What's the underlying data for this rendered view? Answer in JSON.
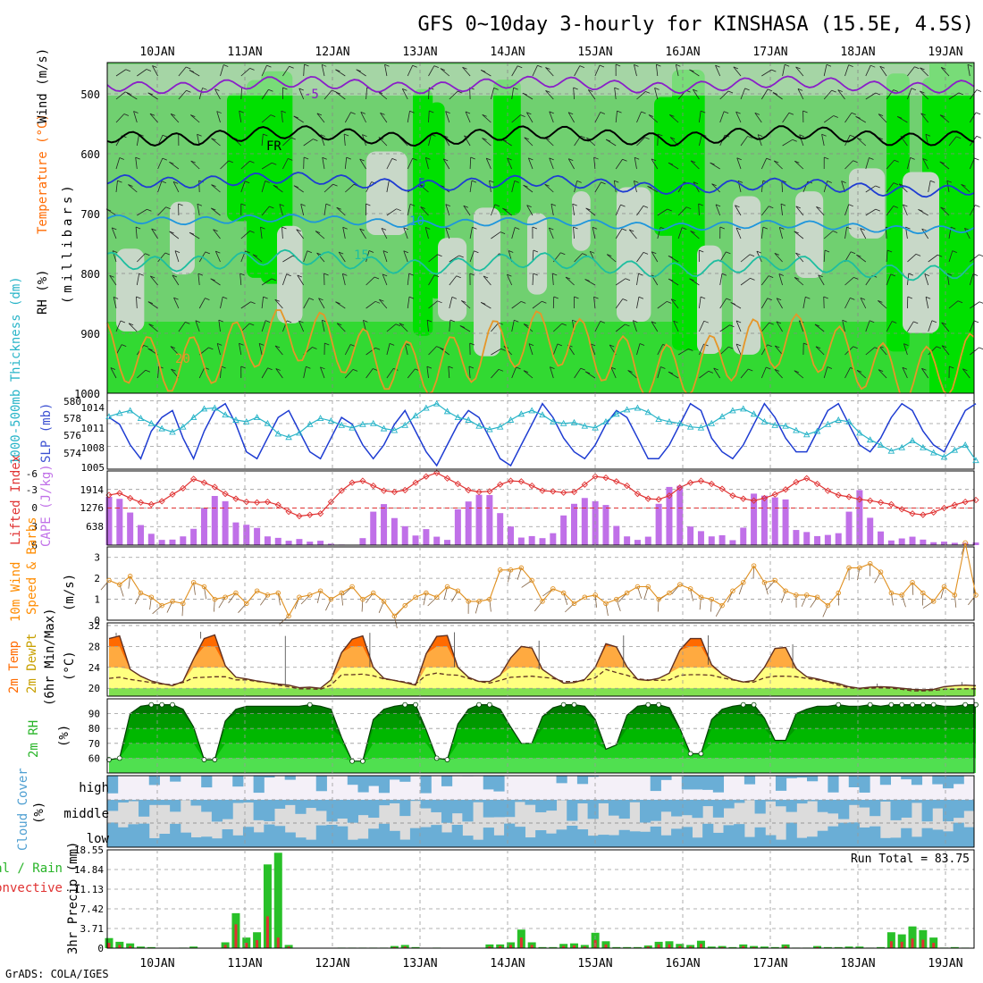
{
  "title": "GFS 0~10day 3-hourly for KINSHASA (15.5E, 4.5S)",
  "footer": "GrADS: COLA/IGES",
  "dates": [
    "10JAN",
    "11JAN",
    "12JAN",
    "13JAN",
    "14JAN",
    "15JAN",
    "16JAN",
    "17JAN",
    "18JAN",
    "19JAN"
  ],
  "colors": {
    "rh_dark": "#00e000",
    "rh_mid": "#70d070",
    "rh_light": "#c8d8c8",
    "sea": "#28b428"
  },
  "panels": {
    "upper": {
      "ylabel_rh": "RH (%)",
      "ylabel_temp": "Temperature (°C)",
      "ylabel_wind": "Wind (m/s)",
      "ylabel_p": "(millibars)",
      "ticks": [
        "500",
        "600",
        "700",
        "800",
        "900",
        "1000"
      ],
      "contours": [
        {
          "label": "-5",
          "color": "#8a1ec8"
        },
        {
          "label": "FR",
          "color": "#000000"
        },
        {
          "label": "5",
          "color": "#1e3cd2"
        },
        {
          "label": "10",
          "color": "#1e96dc"
        },
        {
          "label": "15",
          "color": "#1ebea0"
        },
        {
          "label": "20",
          "color": "#e69628"
        }
      ]
    },
    "slp": {
      "ylabel_left": "1000-500mb Thickness (dm)",
      "ylabel_right": "SLP (mb)",
      "ticks_left": [
        "580",
        "578",
        "576",
        "574"
      ],
      "ticks_right": [
        "1014",
        "1011",
        "1008",
        "1005"
      ]
    },
    "li": {
      "ylabel_left": "Lifted Index",
      "ylabel_right": "CAPE (J/kg)",
      "ticks_left": [
        "-6",
        "-3",
        "0",
        "3",
        "6"
      ],
      "ticks_right": [
        "1914",
        "1276",
        "638"
      ]
    },
    "wind": {
      "ylabel_a": "10m Wind",
      "ylabel_b": "Speed & Barbs",
      "unit": "(m/s)",
      "ticks": [
        "3",
        "2",
        "1",
        "0"
      ]
    },
    "temp": {
      "ylabel_a": "2m Temp",
      "ylabel_b": "2m DewPt",
      "ylabel_c": "(6hr Min/Max)",
      "unit": "(°C)",
      "ticks": [
        "32",
        "28",
        "24",
        "20"
      ]
    },
    "rh": {
      "ylabel": "2m RH",
      "unit": "(%)",
      "ticks": [
        "90",
        "80",
        "70",
        "60"
      ]
    },
    "cloud": {
      "ylabel": "Cloud Cover",
      "unit": "(%)",
      "levels": [
        "high",
        "middle",
        "low"
      ]
    },
    "precip": {
      "ylabel_a": "Total / Rain",
      "ylabel_b": "Convective",
      "unit": "3hr Precip (mm)",
      "ticks": [
        "18.55",
        "14.84",
        "11.13",
        "7.42",
        "3.71",
        "0"
      ],
      "run_total": "Run Total = 83.75"
    }
  },
  "chart_data": [
    {
      "type": "line",
      "title": "",
      "xlabel": "",
      "ylabel": "SLP (mb)",
      "ylim": [
        1005,
        1015
      ],
      "series": [
        {
          "name": "SLP",
          "values": [
            1012,
            1011,
            1008,
            1006,
            1010,
            1012,
            1013,
            1009,
            1006,
            1010,
            1013,
            1014,
            1011,
            1007,
            1006,
            1009,
            1012,
            1013,
            1010,
            1007,
            1006,
            1009,
            1012,
            1011,
            1008,
            1006,
            1008,
            1011,
            1013,
            1010,
            1007,
            1005,
            1008,
            1011,
            1013,
            1012,
            1009,
            1006,
            1005,
            1008,
            1011,
            1014,
            1012,
            1009,
            1007,
            1006,
            1008,
            1011,
            1013,
            1012,
            1009,
            1006,
            1006,
            1008,
            1011,
            1014,
            1013,
            1009,
            1007,
            1006,
            1008,
            1011,
            1014,
            1012,
            1009,
            1007,
            1007,
            1010,
            1013,
            1014,
            1011,
            1008,
            1007,
            1009,
            1012,
            1014,
            1013,
            1010,
            1008,
            1007,
            1010,
            1013,
            1014
          ]
        }
      ]
    },
    {
      "type": "line",
      "title": "",
      "xlabel": "",
      "ylabel": "1000-500mb Thickness (dm)",
      "ylim": [
        572.5,
        580.5
      ],
      "series": [
        {
          "name": "Thickness",
          "values": [
            578.2,
            578.6,
            578.9,
            578.0,
            577.4,
            576.8,
            576.4,
            577.0,
            578.1,
            579.1,
            579.2,
            578.4,
            577.8,
            577.6,
            578.1,
            577.4,
            576.2,
            575.8,
            576.3,
            577.3,
            578.0,
            577.7,
            577.2,
            576.9,
            577.3,
            577.4,
            576.8,
            576.6,
            577.2,
            578.3,
            579.2,
            579.7,
            578.8,
            578.1,
            577.8,
            577.1,
            576.7,
            577.0,
            577.8,
            578.5,
            578.9,
            578.4,
            577.6,
            577.4,
            577.5,
            577.1,
            576.9,
            577.6,
            578.5,
            579.0,
            579.2,
            578.7,
            577.9,
            577.6,
            577.4,
            577.0,
            576.9,
            577.4,
            578.2,
            578.9,
            579.1,
            578.5,
            577.6,
            577.2,
            577.1,
            576.6,
            576.1,
            576.5,
            577.3,
            577.8,
            577.6,
            576.3,
            575.5,
            574.9,
            574.2,
            574.6,
            575.4,
            574.6,
            574.0,
            573.5,
            574.3,
            574.9,
            573.1
          ]
        }
      ]
    },
    {
      "type": "line",
      "title": "",
      "xlabel": "",
      "ylabel": "Lifted Index",
      "ylim": [
        -6,
        6
      ],
      "series": [
        {
          "name": "Lifted Index",
          "values": [
            -2.1,
            -2.4,
            -1.6,
            -0.9,
            -0.6,
            -1.1,
            -2.2,
            -3.2,
            -4.7,
            -4.1,
            -3.4,
            -2.3,
            -1.5,
            -1.0,
            -0.9,
            -1.0,
            -0.5,
            0.6,
            1.3,
            1.1,
            0.9,
            -1.0,
            -2.8,
            -4.1,
            -4.4,
            -3.6,
            -2.8,
            -2.6,
            -2.9,
            -4.1,
            -5.1,
            -5.7,
            -4.8,
            -3.9,
            -2.9,
            -2.6,
            -2.7,
            -3.8,
            -4.4,
            -4.3,
            -3.6,
            -2.8,
            -2.7,
            -2.5,
            -2.6,
            -3.8,
            -5.1,
            -4.9,
            -4.3,
            -3.6,
            -2.3,
            -1.5,
            -1.4,
            -2.0,
            -3.3,
            -4.1,
            -4.4,
            -3.9,
            -3.1,
            -2.0,
            -1.5,
            -1.2,
            -1.6,
            -2.2,
            -3.0,
            -4.2,
            -4.8,
            -3.9,
            -2.8,
            -2.1,
            -1.8,
            -1.4,
            -1.2,
            -0.9,
            -0.6,
            0.2,
            0.9,
            1.1,
            0.7,
            0.0,
            -0.5,
            -1.0,
            -1.3
          ]
        }
      ]
    },
    {
      "type": "bar",
      "title": "",
      "xlabel": "",
      "ylabel": "CAPE (J/kg)",
      "ylim": [
        0,
        2550
      ],
      "series": [
        {
          "name": "CAPE",
          "values": [
            1660,
            1590,
            1120,
            690,
            390,
            180,
            190,
            300,
            560,
            1260,
            1690,
            1510,
            780,
            700,
            590,
            300,
            250,
            150,
            210,
            120,
            150,
            50,
            20,
            0,
            240,
            1150,
            1410,
            930,
            650,
            330,
            550,
            290,
            180,
            1230,
            1500,
            1730,
            1720,
            1100,
            640,
            260,
            310,
            240,
            410,
            1020,
            1420,
            1620,
            1510,
            1380,
            660,
            300,
            180,
            290,
            1420,
            2000,
            2040,
            640,
            480,
            300,
            340,
            170,
            600,
            1770,
            1700,
            1640,
            1570,
            520,
            450,
            310,
            350,
            410,
            1150,
            1890,
            940,
            470,
            160,
            230,
            290,
            190,
            100,
            120,
            80,
            80,
            90
          ]
        }
      ]
    },
    {
      "type": "line",
      "title": "",
      "xlabel": "",
      "ylabel": "10m Wind Speed (m/s)",
      "ylim": [
        0,
        3.5
      ],
      "series": [
        {
          "name": "Wind Speed",
          "values": [
            1.9,
            1.7,
            2.1,
            1.3,
            1.1,
            0.7,
            0.9,
            0.8,
            1.8,
            1.6,
            1.0,
            1.1,
            1.3,
            0.8,
            1.4,
            1.2,
            1.3,
            0.2,
            1.1,
            1.2,
            1.4,
            1.0,
            1.3,
            1.6,
            1.0,
            1.3,
            0.9,
            0.2,
            0.7,
            1.1,
            1.3,
            1.1,
            1.6,
            1.4,
            0.9,
            0.9,
            1.0,
            2.4,
            2.4,
            2.5,
            1.9,
            0.9,
            1.5,
            1.3,
            0.8,
            1.1,
            1.2,
            0.8,
            1.0,
            1.3,
            1.6,
            1.6,
            1.0,
            1.3,
            1.7,
            1.5,
            1.1,
            1.0,
            0.7,
            1.4,
            1.8,
            2.6,
            1.8,
            1.9,
            1.4,
            1.2,
            1.2,
            1.1,
            0.7,
            1.3,
            2.5,
            2.5,
            2.7,
            2.3,
            1.3,
            1.2,
            1.8,
            1.3,
            0.9,
            1.6,
            1.2,
            3.7,
            1.2
          ]
        }
      ]
    },
    {
      "type": "area",
      "title": "",
      "xlabel": "",
      "ylabel": "2m Temp (°C)",
      "ylim": [
        18.5,
        32.5
      ],
      "series": [
        {
          "name": "2m Temp",
          "values": [
            29.5,
            30.0,
            23.6,
            22.3,
            21.4,
            20.9,
            20.5,
            21.3,
            25.6,
            29.5,
            30.2,
            24.3,
            22.1,
            21.8,
            21.4,
            21.1,
            20.8,
            20.6,
            20.1,
            20.2,
            20.0,
            21.6,
            26.8,
            29.4,
            30.0,
            24.0,
            21.9,
            21.5,
            21.1,
            20.6,
            26.6,
            29.9,
            30.1,
            24.0,
            22.1,
            21.3,
            21.3,
            22.5,
            25.8,
            28.0,
            27.7,
            23.6,
            22.2,
            21.0,
            21.1,
            21.7,
            24.0,
            28.5,
            27.9,
            24.1,
            21.7,
            21.5,
            21.9,
            22.9,
            27.3,
            29.5,
            29.5,
            24.5,
            22.7,
            21.7,
            21.2,
            21.5,
            24.0,
            27.6,
            27.8,
            23.8,
            22.2,
            21.8,
            21.3,
            20.9,
            20.3,
            20.0,
            20.2,
            20.3,
            20.2,
            20.0,
            19.8,
            19.7,
            19.8,
            20.3,
            20.5,
            20.6,
            20.5
          ]
        },
        {
          "name": "2m DewPt",
          "values": [
            21.9,
            22.1,
            21.7,
            21.4,
            21.1,
            20.8,
            20.7,
            21.1,
            22.0,
            22.1,
            22.2,
            22.2,
            21.6,
            21.6,
            21.3,
            21.1,
            20.6,
            20.3,
            19.9,
            19.9,
            19.8,
            20.6,
            22.6,
            22.6,
            22.7,
            22.4,
            21.8,
            21.5,
            21.2,
            20.8,
            22.5,
            22.9,
            22.6,
            22.5,
            21.9,
            21.3,
            21.0,
            21.5,
            22.1,
            22.2,
            22.3,
            22.1,
            21.9,
            21.3,
            21.3,
            21.5,
            22.0,
            23.6,
            23.0,
            22.5,
            21.8,
            21.6,
            21.5,
            21.6,
            22.5,
            22.6,
            22.6,
            22.5,
            22.0,
            21.6,
            21.2,
            21.2,
            22.0,
            22.3,
            22.3,
            22.2,
            21.9,
            21.6,
            21.2,
            20.6,
            20.1,
            19.9,
            20.0,
            20.1,
            20.0,
            19.8,
            19.5,
            19.5,
            19.6,
            19.8,
            19.8,
            19.9,
            19.9
          ]
        }
      ]
    },
    {
      "type": "area",
      "title": "",
      "xlabel": "",
      "ylabel": "2m RH (%)",
      "ylim": [
        50,
        100
      ],
      "series": [
        {
          "name": "2m RH",
          "values": [
            59,
            60,
            90,
            95,
            96,
            96,
            96,
            93,
            81,
            59,
            59,
            85,
            93,
            95,
            95,
            95,
            95,
            95,
            95,
            96,
            95,
            93,
            74,
            58,
            58,
            86,
            93,
            95,
            96,
            96,
            79,
            60,
            59,
            83,
            93,
            96,
            96,
            93,
            81,
            70,
            70,
            88,
            94,
            96,
            96,
            95,
            86,
            66,
            69,
            89,
            95,
            96,
            96,
            94,
            80,
            63,
            63,
            86,
            93,
            95,
            96,
            96,
            87,
            72,
            72,
            90,
            93,
            95,
            95,
            96,
            95,
            95,
            96,
            95,
            96,
            96,
            96,
            96,
            96,
            95,
            95,
            96,
            96
          ]
        }
      ]
    },
    {
      "type": "bar",
      "title": "",
      "xlabel": "",
      "ylabel": "3hr Precip (mm)",
      "ylim": [
        0,
        18.55
      ],
      "series": [
        {
          "name": "Total / Rain",
          "values": [
            1.9,
            1.2,
            0.9,
            0.3,
            0.2,
            0,
            0,
            0.1,
            0.3,
            0,
            0,
            1.1,
            6.6,
            2.0,
            3.0,
            15.8,
            18.0,
            0.6,
            0,
            0,
            0,
            0,
            0.1,
            0.1,
            0.1,
            0.1,
            0.1,
            0.4,
            0.6,
            0.2,
            0,
            0.1,
            0,
            0,
            0,
            0,
            0.7,
            0.7,
            1.1,
            3.5,
            1.1,
            0.2,
            0.2,
            0.8,
            0.9,
            0.6,
            2.9,
            1.3,
            0.2,
            0.2,
            0.2,
            0.5,
            1.2,
            1.3,
            0.8,
            0.6,
            1.4,
            0.3,
            0.4,
            0.2,
            0.7,
            0.4,
            0.3,
            0.2,
            0.7,
            0.1,
            0.1,
            0.4,
            0.2,
            0.2,
            0.3,
            0.3,
            0.1,
            0.2,
            3.0,
            2.6,
            4.1,
            3.4,
            2.0,
            0.1,
            0.2,
            0.1,
            0
          ]
        },
        {
          "name": "Convective",
          "values": [
            1.0,
            0.6,
            0.4,
            0.1,
            0.1,
            0,
            0,
            0,
            0.1,
            0,
            0,
            0.6,
            4.5,
            1.0,
            1.5,
            6.0,
            2.0,
            0.3,
            0,
            0,
            0,
            0,
            0,
            0,
            0,
            0,
            0,
            0.2,
            0.3,
            0.1,
            0,
            0,
            0,
            0,
            0,
            0,
            0.3,
            0.4,
            0.6,
            2.0,
            0.6,
            0.1,
            0.1,
            0.4,
            0.5,
            0.3,
            1.5,
            0.7,
            0.1,
            0.1,
            0.1,
            0.3,
            0.7,
            0.7,
            0.4,
            0.3,
            0.8,
            0.1,
            0.2,
            0.1,
            0.4,
            0.2,
            0.1,
            0.1,
            0.4,
            0,
            0,
            0.2,
            0.1,
            0.1,
            0.1,
            0.1,
            0,
            0.1,
            1.3,
            1.2,
            1.8,
            1.6,
            1.0,
            0,
            0.1,
            0,
            0
          ]
        }
      ]
    }
  ]
}
